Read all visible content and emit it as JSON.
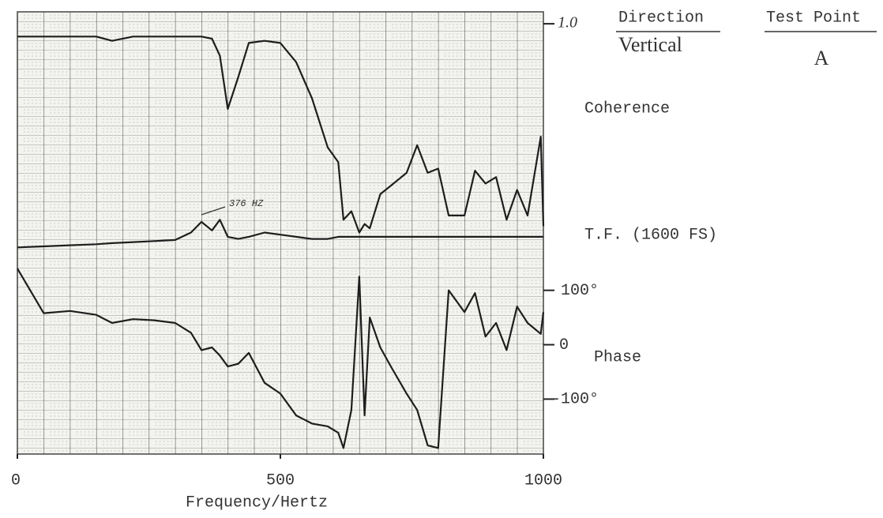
{
  "chart_data": {
    "type": "line",
    "xlabel": "Frequency/Hertz",
    "xlim": [
      0,
      1000
    ],
    "xticks": [
      0,
      500,
      1000
    ],
    "ylim": [
      -201,
      612
    ],
    "yticks": [
      {
        "value": 100,
        "label": "100°"
      },
      0,
      {
        "value": -100,
        "label": "-100°"
      }
    ],
    "y2lim": [
      -1.02,
      1.056
    ],
    "y2ticks": [
      {
        "value": 1,
        "label": "1.0"
      }
    ],
    "grid": true,
    "direction_label": "Direction",
    "direction": "Vertical",
    "test_point_label": "Test Point",
    "test_point": "A",
    "annotation": "376 HZ",
    "x": [
      0,
      50,
      100,
      150,
      180,
      220,
      260,
      300,
      330,
      350,
      370,
      385,
      400,
      420,
      440,
      470,
      500,
      530,
      560,
      590,
      610,
      620,
      635,
      650,
      660,
      670,
      690,
      710,
      740,
      760,
      780,
      800,
      820,
      850,
      870,
      890,
      910,
      930,
      950,
      970,
      995,
      1000
    ],
    "series": [
      {
        "name": "Coherence",
        "color": "#1e1e1e",
        "axis": "y2",
        "values": [
          0.94,
          0.94,
          0.94,
          0.94,
          0.92,
          0.94,
          0.94,
          0.94,
          0.94,
          0.94,
          0.93,
          0.85,
          0.6,
          0.75,
          0.91,
          0.92,
          0.91,
          0.82,
          0.65,
          0.42,
          0.35,
          0.08,
          0.12,
          0.02,
          0.06,
          0.04,
          0.2,
          0.24,
          0.3,
          0.43,
          0.3,
          0.32,
          0.1,
          0.1,
          0.31,
          0.25,
          0.28,
          0.08,
          0.22,
          0.1,
          0.47,
          0.05
        ]
      },
      {
        "name": "T.F. (1600 FS)",
        "color": "#1e1e1e",
        "axis": "y2",
        "values": [
          -0.05,
          -0.045,
          -0.04,
          -0.035,
          -0.03,
          -0.025,
          -0.02,
          -0.015,
          0.02,
          0.07,
          0.03,
          0.08,
          0.0,
          -0.01,
          0.0,
          0.02,
          0.01,
          0.0,
          -0.01,
          -0.01,
          0.0,
          0.0,
          0.0,
          0.0,
          0.0,
          0.0,
          0.0,
          0.0,
          0.0,
          0.0,
          0.0,
          0.0,
          0.0,
          0.0,
          0.0,
          0.0,
          0.0,
          0.0,
          0.0,
          0.0,
          0.0,
          0.0
        ]
      },
      {
        "name": "Phase",
        "color": "#1e1e1e",
        "values": [
          140,
          58,
          62,
          55,
          40,
          47,
          45,
          40,
          22,
          -10,
          -5,
          -20,
          -40,
          -35,
          -15,
          -70,
          -90,
          -130,
          -145,
          -150,
          -162,
          -190,
          -120,
          125,
          -130,
          50,
          -5,
          -40,
          -90,
          -120,
          -185,
          -190,
          100,
          60,
          95,
          15,
          40,
          -10,
          70,
          40,
          20,
          60
        ]
      }
    ]
  }
}
